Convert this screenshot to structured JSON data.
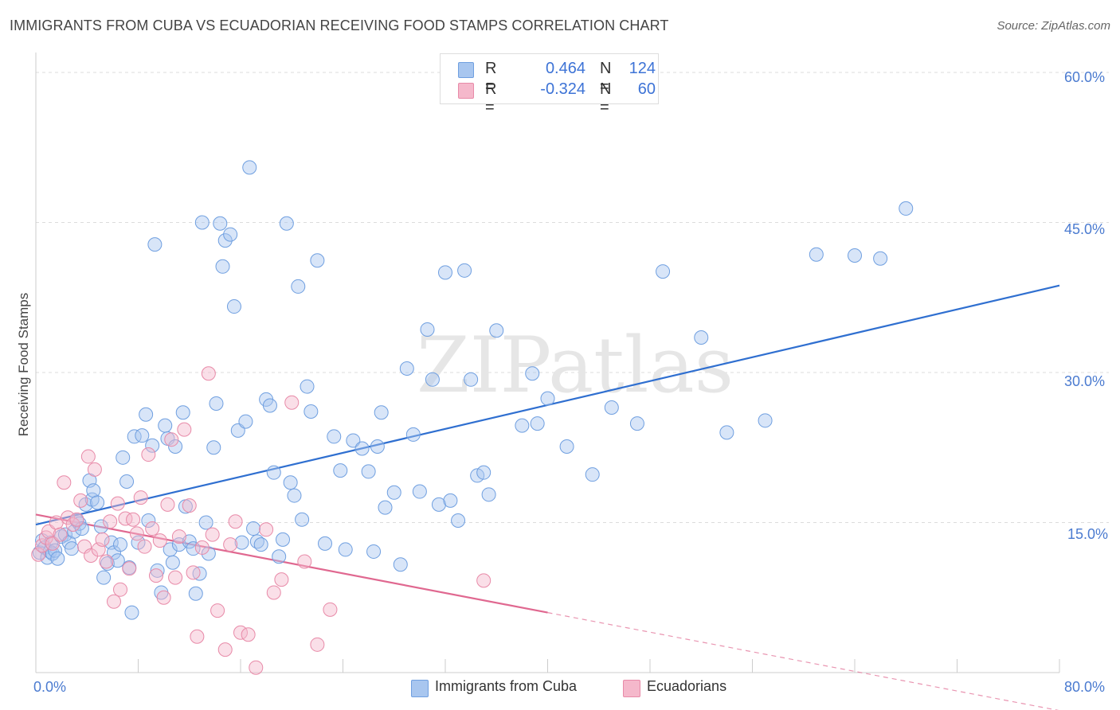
{
  "title": "IMMIGRANTS FROM CUBA VS ECUADORIAN RECEIVING FOOD STAMPS CORRELATION CHART",
  "source": "Source: ZipAtlas.com",
  "watermark": "ZIPatlas",
  "colors": {
    "blue_fill": "#a8c6ef",
    "blue_stroke": "#6f9fe0",
    "blue_line": "#2f6fd0",
    "pink_fill": "#f5b8cb",
    "pink_stroke": "#e88aa8",
    "pink_line": "#e06890",
    "axis_text": "#4b7bd0"
  },
  "legend": {
    "rows": [
      {
        "r_label": "R =",
        "r_value": "0.464",
        "n_label": "N =",
        "n_value": "124"
      },
      {
        "r_label": "R =",
        "r_value": "-0.324",
        "n_label": "N =",
        "n_value": "60"
      }
    ]
  },
  "bottom_legend": [
    "Immigrants from Cuba",
    "Ecuadorians"
  ],
  "chart_data": {
    "type": "scatter",
    "title": "IMMIGRANTS FROM CUBA VS ECUADORIAN RECEIVING FOOD STAMPS CORRELATION CHART",
    "xlabel": "",
    "ylabel": "Receiving Food Stamps",
    "xlim": [
      0,
      80
    ],
    "ylim": [
      0,
      60
    ],
    "x_tick_labels": [
      "0.0%",
      "80.0%"
    ],
    "y_tick_labels": [
      "15.0%",
      "30.0%",
      "45.0%",
      "60.0%"
    ],
    "y_ticks": [
      15,
      30,
      45,
      60
    ],
    "legend_position": "top-center",
    "series": [
      {
        "name": "Immigrants from Cuba",
        "color": "blue",
        "trend": {
          "x": [
            0,
            80
          ],
          "y": [
            14.8,
            38.7
          ]
        },
        "points": [
          [
            0.3,
            12.0
          ],
          [
            0.5,
            13.2
          ],
          [
            0.7,
            12.5
          ],
          [
            0.9,
            11.5
          ],
          [
            1.1,
            12.1
          ],
          [
            1.2,
            13.0
          ],
          [
            1.3,
            11.9
          ],
          [
            1.5,
            12.2
          ],
          [
            1.7,
            11.4
          ],
          [
            2.0,
            13.6
          ],
          [
            2.3,
            13.8
          ],
          [
            2.6,
            13.0
          ],
          [
            2.8,
            12.4
          ],
          [
            3.0,
            14.1
          ],
          [
            3.2,
            15.2
          ],
          [
            3.4,
            14.9
          ],
          [
            3.6,
            14.4
          ],
          [
            3.9,
            16.8
          ],
          [
            4.2,
            19.2
          ],
          [
            4.4,
            17.3
          ],
          [
            4.5,
            18.2
          ],
          [
            4.8,
            17.0
          ],
          [
            5.1,
            14.6
          ],
          [
            5.3,
            9.5
          ],
          [
            5.6,
            10.9
          ],
          [
            5.9,
            13.0
          ],
          [
            6.1,
            12.0
          ],
          [
            6.4,
            11.2
          ],
          [
            6.6,
            12.8
          ],
          [
            6.8,
            21.5
          ],
          [
            7.1,
            19.1
          ],
          [
            7.3,
            10.5
          ],
          [
            7.5,
            6.0
          ],
          [
            7.7,
            23.6
          ],
          [
            8.0,
            13.0
          ],
          [
            8.3,
            23.7
          ],
          [
            8.6,
            25.8
          ],
          [
            8.8,
            15.2
          ],
          [
            9.1,
            22.7
          ],
          [
            9.3,
            42.8
          ],
          [
            9.5,
            10.2
          ],
          [
            9.8,
            8.0
          ],
          [
            10.1,
            24.7
          ],
          [
            10.3,
            23.4
          ],
          [
            10.5,
            12.3
          ],
          [
            10.7,
            11.0
          ],
          [
            10.9,
            22.6
          ],
          [
            11.2,
            12.8
          ],
          [
            11.5,
            26.0
          ],
          [
            11.7,
            16.6
          ],
          [
            12.0,
            13.1
          ],
          [
            12.3,
            12.4
          ],
          [
            12.5,
            7.9
          ],
          [
            12.8,
            9.9
          ],
          [
            13.0,
            45.0
          ],
          [
            13.3,
            15.0
          ],
          [
            13.5,
            11.9
          ],
          [
            13.9,
            22.5
          ],
          [
            14.1,
            26.9
          ],
          [
            14.4,
            44.9
          ],
          [
            14.6,
            40.6
          ],
          [
            14.8,
            43.2
          ],
          [
            15.2,
            43.8
          ],
          [
            15.5,
            36.6
          ],
          [
            15.8,
            24.2
          ],
          [
            16.1,
            13.0
          ],
          [
            16.4,
            25.1
          ],
          [
            16.7,
            50.5
          ],
          [
            17.0,
            14.4
          ],
          [
            17.3,
            13.1
          ],
          [
            17.6,
            12.8
          ],
          [
            18.0,
            27.3
          ],
          [
            18.3,
            26.7
          ],
          [
            18.6,
            20.0
          ],
          [
            19.0,
            11.6
          ],
          [
            19.3,
            13.3
          ],
          [
            19.6,
            44.9
          ],
          [
            19.9,
            19.0
          ],
          [
            20.2,
            17.7
          ],
          [
            20.5,
            38.6
          ],
          [
            20.8,
            15.3
          ],
          [
            21.2,
            28.6
          ],
          [
            21.5,
            26.1
          ],
          [
            22.0,
            41.2
          ],
          [
            22.6,
            12.9
          ],
          [
            23.3,
            23.6
          ],
          [
            23.8,
            20.2
          ],
          [
            24.2,
            12.3
          ],
          [
            24.8,
            23.2
          ],
          [
            25.5,
            22.4
          ],
          [
            26.0,
            20.1
          ],
          [
            26.4,
            12.1
          ],
          [
            26.7,
            22.6
          ],
          [
            27.0,
            26.0
          ],
          [
            27.3,
            16.5
          ],
          [
            28.0,
            18.0
          ],
          [
            28.5,
            10.8
          ],
          [
            29.0,
            30.4
          ],
          [
            29.5,
            23.8
          ],
          [
            30.0,
            18.1
          ],
          [
            30.6,
            34.3
          ],
          [
            31.0,
            29.3
          ],
          [
            31.5,
            16.8
          ],
          [
            32.0,
            40.0
          ],
          [
            32.4,
            17.2
          ],
          [
            33.0,
            15.2
          ],
          [
            33.5,
            40.2
          ],
          [
            34.0,
            29.3
          ],
          [
            34.5,
            19.7
          ],
          [
            35.0,
            20.0
          ],
          [
            35.4,
            17.8
          ],
          [
            36.0,
            34.2
          ],
          [
            38.0,
            24.7
          ],
          [
            38.8,
            29.9
          ],
          [
            39.2,
            24.9
          ],
          [
            40.0,
            27.4
          ],
          [
            41.5,
            22.6
          ],
          [
            43.5,
            19.8
          ],
          [
            45.0,
            26.5
          ],
          [
            47.0,
            24.9
          ],
          [
            49.0,
            40.1
          ],
          [
            52.0,
            33.5
          ],
          [
            54.0,
            24.0
          ],
          [
            57.0,
            25.2
          ],
          [
            61.0,
            41.8
          ],
          [
            64.0,
            41.7
          ],
          [
            66.0,
            41.4
          ],
          [
            68.0,
            46.4
          ]
        ]
      },
      {
        "name": "Ecuadorians",
        "color": "pink",
        "trend": {
          "x": [
            0,
            40
          ],
          "y": [
            15.8,
            6.0
          ]
        },
        "trend_dashed": {
          "x": [
            40,
            80
          ],
          "y": [
            6.0,
            -3.8
          ]
        },
        "points": [
          [
            0.2,
            11.8
          ],
          [
            0.5,
            12.7
          ],
          [
            0.8,
            13.5
          ],
          [
            1.0,
            14.1
          ],
          [
            1.3,
            12.9
          ],
          [
            1.6,
            15.0
          ],
          [
            1.9,
            13.8
          ],
          [
            2.2,
            19.0
          ],
          [
            2.5,
            15.5
          ],
          [
            2.9,
            14.8
          ],
          [
            3.2,
            15.3
          ],
          [
            3.5,
            17.2
          ],
          [
            3.8,
            12.6
          ],
          [
            4.1,
            21.6
          ],
          [
            4.3,
            11.7
          ],
          [
            4.6,
            20.3
          ],
          [
            4.9,
            12.3
          ],
          [
            5.2,
            13.3
          ],
          [
            5.5,
            11.1
          ],
          [
            5.8,
            15.1
          ],
          [
            6.1,
            7.1
          ],
          [
            6.4,
            16.9
          ],
          [
            6.6,
            8.3
          ],
          [
            7.0,
            15.4
          ],
          [
            7.3,
            10.4
          ],
          [
            7.6,
            15.3
          ],
          [
            7.9,
            13.9
          ],
          [
            8.2,
            17.5
          ],
          [
            8.5,
            12.6
          ],
          [
            8.8,
            21.8
          ],
          [
            9.1,
            14.4
          ],
          [
            9.4,
            9.7
          ],
          [
            9.7,
            13.2
          ],
          [
            10.0,
            7.5
          ],
          [
            10.3,
            16.8
          ],
          [
            10.6,
            23.3
          ],
          [
            10.9,
            9.5
          ],
          [
            11.2,
            13.6
          ],
          [
            11.6,
            24.3
          ],
          [
            12.0,
            16.7
          ],
          [
            12.3,
            10.0
          ],
          [
            12.6,
            3.6
          ],
          [
            13.0,
            12.5
          ],
          [
            13.5,
            29.9
          ],
          [
            13.8,
            13.8
          ],
          [
            14.2,
            6.2
          ],
          [
            14.8,
            2.3
          ],
          [
            15.2,
            12.8
          ],
          [
            15.6,
            15.1
          ],
          [
            16.0,
            4.0
          ],
          [
            16.6,
            3.8
          ],
          [
            17.2,
            0.5
          ],
          [
            18.0,
            14.3
          ],
          [
            18.6,
            8.0
          ],
          [
            19.2,
            9.3
          ],
          [
            20.0,
            27.0
          ],
          [
            21.0,
            11.1
          ],
          [
            22.0,
            2.8
          ],
          [
            23.0,
            6.3
          ],
          [
            35.0,
            9.2
          ]
        ]
      }
    ]
  }
}
